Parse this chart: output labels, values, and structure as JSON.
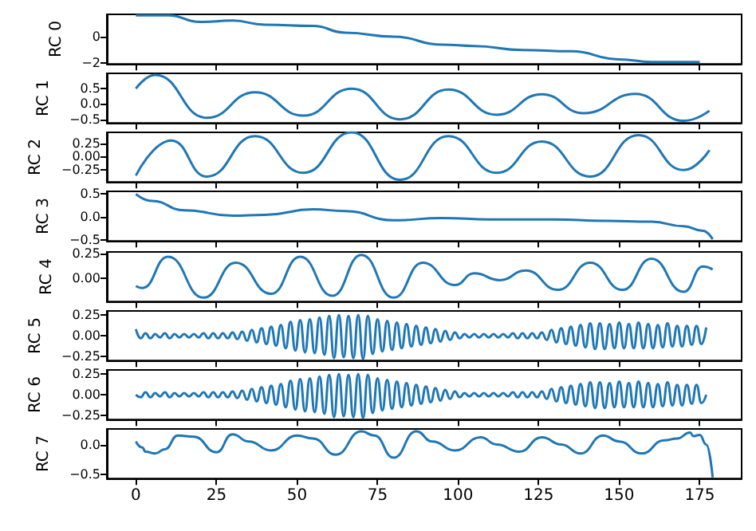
{
  "chart_data": [
    {
      "type": "line",
      "ylabel": "RC 0",
      "color": "#1f77b4",
      "xlim": [
        -9,
        188
      ],
      "xticks": [
        0,
        25,
        50,
        75,
        100,
        125,
        150,
        175
      ],
      "ylim": [
        -2.05,
        1.67
      ],
      "yticks": [
        {
          "value": -2,
          "label": "−2"
        },
        0
      ],
      "tick_labels": "y",
      "x": [
        0,
        10,
        20,
        30,
        40,
        55,
        65,
        80,
        95,
        105,
        120,
        135,
        150,
        160,
        175
      ],
      "values": [
        1.6,
        1.6,
        1.1,
        1.2,
        0.9,
        0.8,
        0.3,
        0.0,
        -0.6,
        -0.7,
        -1.0,
        -1.1,
        -1.7,
        -1.9,
        -1.9
      ]
    },
    {
      "type": "line",
      "ylabel": "RC 1",
      "color": "#1f77b4",
      "xlim": [
        -9,
        188
      ],
      "xticks": [
        0,
        25,
        50,
        75,
        100,
        125,
        150,
        175
      ],
      "ylim": [
        -0.62,
        1.0
      ],
      "yticks": [
        {
          "value": -0.5,
          "label": "−0.5"
        },
        {
          "value": 0,
          "label": "0.0"
        },
        0.5
      ],
      "tick_labels": "y",
      "x": [
        0,
        6,
        22,
        37,
        52,
        67,
        82,
        97,
        112,
        126,
        139,
        155,
        170,
        178
      ],
      "values": [
        0.5,
        0.95,
        -0.45,
        0.38,
        -0.38,
        0.5,
        -0.5,
        0.47,
        -0.35,
        0.32,
        -0.3,
        0.33,
        -0.55,
        -0.22
      ]
    },
    {
      "type": "line",
      "ylabel": "RC 2",
      "color": "#1f77b4",
      "xlim": [
        -9,
        188
      ],
      "xticks": [
        0,
        25,
        50,
        75,
        100,
        125,
        150,
        175
      ],
      "ylim": [
        -0.47,
        0.45
      ],
      "yticks": [
        {
          "value": -0.25,
          "label": "−0.25"
        },
        {
          "value": 0,
          "label": "0.00"
        },
        0.25
      ],
      "tick_labels": "y",
      "x": [
        0,
        11,
        22,
        37,
        52,
        67,
        82,
        97,
        112,
        126,
        141,
        156,
        170,
        178
      ],
      "values": [
        -0.35,
        0.3,
        -0.37,
        0.38,
        -0.3,
        0.45,
        -0.43,
        0.38,
        -0.3,
        0.28,
        -0.37,
        0.4,
        -0.25,
        0.12
      ]
    },
    {
      "type": "line",
      "ylabel": "RC 3",
      "color": "#1f77b4",
      "xlim": [
        -9,
        188
      ],
      "xticks": [
        0,
        25,
        50,
        75,
        100,
        125,
        150,
        175
      ],
      "ylim": [
        -0.52,
        0.56
      ],
      "yticks": [
        {
          "value": -0.5,
          "label": "−0.5"
        },
        {
          "value": 0,
          "label": "0.0"
        },
        0.5
      ],
      "tick_labels": "y",
      "x": [
        0,
        5,
        15,
        30,
        40,
        55,
        65,
        80,
        95,
        110,
        130,
        145,
        160,
        170,
        176,
        179
      ],
      "values": [
        0.5,
        0.35,
        0.15,
        0.03,
        0.05,
        0.17,
        0.13,
        -0.07,
        -0.02,
        -0.05,
        -0.05,
        -0.08,
        -0.1,
        -0.2,
        -0.3,
        -0.48
      ]
    },
    {
      "type": "line",
      "ylabel": "RC 4",
      "color": "#1f77b4",
      "xlim": [
        -9,
        188
      ],
      "xticks": [
        0,
        25,
        50,
        75,
        100,
        125,
        150,
        175
      ],
      "ylim": [
        -0.24,
        0.27
      ],
      "yticks": [
        {
          "value": 0,
          "label": "0.00"
        },
        0.25
      ],
      "tick_labels": "y",
      "x": [
        0,
        2,
        10,
        21,
        31,
        42,
        51,
        61,
        70,
        80,
        89,
        99,
        105,
        113,
        121,
        131,
        141,
        151,
        160,
        170,
        176,
        179
      ],
      "values": [
        -0.08,
        -0.1,
        0.22,
        -0.2,
        0.16,
        -0.16,
        0.22,
        -0.18,
        0.24,
        -0.2,
        0.16,
        -0.07,
        0.05,
        -0.02,
        0.08,
        -0.12,
        0.16,
        -0.12,
        0.2,
        -0.14,
        0.12,
        0.09
      ]
    },
    {
      "type": "line",
      "ylabel": "RC 5",
      "color": "#1f77b4",
      "xlim": [
        -9,
        188
      ],
      "xticks": [
        0,
        25,
        50,
        75,
        100,
        125,
        150,
        175
      ],
      "ylim": [
        -0.3,
        0.3
      ],
      "yticks": [
        {
          "value": -0.25,
          "label": "−0.25"
        },
        {
          "value": 0,
          "label": "0.00"
        },
        0.25
      ],
      "tick_labels": "y",
      "x": [
        0,
        1.5,
        3,
        4.5,
        6,
        7.5,
        9,
        10.5,
        12,
        13.5,
        15,
        16.5,
        18,
        19.5,
        21,
        22.5,
        24,
        25.5,
        27,
        28.5,
        30,
        31.5,
        33,
        34.5,
        36,
        37.5,
        39,
        40.5,
        42,
        43.5,
        45,
        46.5,
        48,
        49.5,
        51,
        52.5,
        54,
        55.5,
        57,
        58.5,
        60,
        61.5,
        63,
        64.5,
        66,
        67.5,
        69,
        70.5,
        72,
        73.5,
        75,
        76.5,
        78,
        79.5,
        81,
        82.5,
        84,
        85.5,
        87,
        88.5,
        90,
        91.5,
        93,
        94.5,
        96,
        97.5,
        99,
        100.5,
        102,
        103.5,
        105,
        106.5,
        108,
        109.5,
        111,
        112.5,
        114,
        115.5,
        117,
        118.5,
        120,
        121.5,
        123,
        124.5,
        126,
        127.5,
        129,
        130.5,
        132,
        133.5,
        135,
        136.5,
        138,
        139.5,
        141,
        142.5,
        144,
        145.5,
        147,
        148.5,
        150,
        151.5,
        153,
        154.5,
        156,
        157.5,
        159,
        160.5,
        162,
        163.5,
        165,
        166.5,
        168,
        169.5,
        171,
        172.5,
        174,
        175.5,
        177
      ],
      "values": [
        0.08,
        -0.03,
        0.03,
        -0.03,
        0.02,
        -0.02,
        0.03,
        -0.03,
        0.02,
        -0.02,
        0.02,
        -0.02,
        0.02,
        -0.02,
        0.03,
        -0.03,
        0.03,
        -0.03,
        0.03,
        -0.03,
        0.04,
        -0.04,
        0.05,
        -0.06,
        0.07,
        -0.08,
        0.09,
        -0.1,
        0.11,
        -0.12,
        0.13,
        -0.15,
        0.17,
        -0.18,
        0.19,
        -0.2,
        0.2,
        -0.21,
        0.22,
        -0.23,
        0.24,
        -0.27,
        0.25,
        -0.26,
        0.24,
        -0.27,
        0.25,
        -0.28,
        0.24,
        -0.22,
        0.2,
        -0.19,
        0.18,
        -0.17,
        0.16,
        -0.15,
        0.14,
        -0.13,
        0.12,
        -0.11,
        0.1,
        -0.09,
        0.08,
        -0.07,
        0.06,
        -0.05,
        0.04,
        -0.03,
        0.02,
        -0.02,
        0.02,
        -0.02,
        0.02,
        -0.02,
        0.02,
        -0.02,
        0.02,
        -0.02,
        0.03,
        -0.03,
        0.03,
        -0.03,
        0.03,
        -0.03,
        0.04,
        -0.05,
        0.07,
        -0.08,
        0.09,
        -0.1,
        0.11,
        -0.12,
        0.13,
        -0.14,
        0.15,
        -0.16,
        0.15,
        -0.16,
        0.14,
        -0.15,
        0.16,
        -0.15,
        0.14,
        -0.15,
        0.16,
        -0.15,
        0.14,
        -0.15,
        0.13,
        -0.14,
        0.15,
        -0.13,
        0.12,
        -0.13,
        0.12,
        -0.11,
        0.12,
        -0.1,
        0.1
      ]
    },
    {
      "type": "line",
      "ylabel": "RC 6",
      "color": "#1f77b4",
      "xlim": [
        -9,
        188
      ],
      "xticks": [
        0,
        25,
        50,
        75,
        100,
        125,
        150,
        175
      ],
      "ylim": [
        -0.3,
        0.3
      ],
      "yticks": [
        {
          "value": -0.25,
          "label": "−0.25"
        },
        {
          "value": 0,
          "label": "0.00"
        },
        0.25
      ],
      "tick_labels": "y",
      "x": [
        0,
        1.5,
        3,
        4.5,
        6,
        7.5,
        9,
        10.5,
        12,
        13.5,
        15,
        16.5,
        18,
        19.5,
        21,
        22.5,
        24,
        25.5,
        27,
        28.5,
        30,
        31.5,
        33,
        34.5,
        36,
        37.5,
        39,
        40.5,
        42,
        43.5,
        45,
        46.5,
        48,
        49.5,
        51,
        52.5,
        54,
        55.5,
        57,
        58.5,
        60,
        61.5,
        63,
        64.5,
        66,
        67.5,
        69,
        70.5,
        72,
        73.5,
        75,
        76.5,
        78,
        79.5,
        81,
        82.5,
        84,
        85.5,
        87,
        88.5,
        90,
        91.5,
        93,
        94.5,
        96,
        97.5,
        99,
        100.5,
        102,
        103.5,
        105,
        106.5,
        108,
        109.5,
        111,
        112.5,
        114,
        115.5,
        117,
        118.5,
        120,
        121.5,
        123,
        124.5,
        126,
        127.5,
        129,
        130.5,
        132,
        133.5,
        135,
        136.5,
        138,
        139.5,
        141,
        142.5,
        144,
        145.5,
        147,
        148.5,
        150,
        151.5,
        153,
        154.5,
        156,
        157.5,
        159,
        160.5,
        162,
        163.5,
        165,
        166.5,
        168,
        169.5,
        171,
        172.5,
        174,
        175.5,
        177
      ],
      "values": [
        0.0,
        -0.03,
        0.03,
        -0.03,
        0.02,
        -0.02,
        0.03,
        -0.03,
        0.02,
        -0.02,
        0.02,
        -0.02,
        0.02,
        -0.02,
        0.03,
        -0.03,
        0.03,
        -0.03,
        0.03,
        -0.03,
        0.04,
        -0.04,
        0.05,
        -0.06,
        0.07,
        -0.08,
        0.09,
        -0.1,
        0.11,
        -0.12,
        0.13,
        -0.15,
        0.17,
        -0.18,
        0.19,
        -0.2,
        0.2,
        -0.21,
        0.22,
        -0.23,
        0.24,
        -0.27,
        0.25,
        -0.26,
        0.24,
        -0.27,
        0.25,
        -0.28,
        0.24,
        -0.22,
        0.2,
        -0.19,
        0.18,
        -0.17,
        0.16,
        -0.15,
        0.14,
        -0.13,
        0.12,
        -0.11,
        0.1,
        -0.09,
        0.08,
        -0.07,
        0.06,
        -0.05,
        0.04,
        -0.03,
        0.02,
        -0.02,
        0.02,
        -0.02,
        0.02,
        -0.02,
        0.02,
        -0.02,
        0.02,
        -0.02,
        0.03,
        -0.03,
        0.03,
        -0.03,
        0.03,
        -0.03,
        0.04,
        -0.05,
        0.07,
        -0.08,
        0.09,
        -0.1,
        0.11,
        -0.12,
        0.13,
        -0.14,
        0.15,
        -0.16,
        0.15,
        -0.16,
        0.14,
        -0.15,
        0.16,
        -0.15,
        0.14,
        -0.15,
        0.16,
        -0.15,
        0.14,
        -0.15,
        0.13,
        -0.14,
        0.15,
        -0.13,
        0.12,
        -0.13,
        0.12,
        -0.11,
        0.12,
        -0.1,
        0.0
      ]
    },
    {
      "type": "line",
      "ylabel": "RC 7",
      "color": "#1f77b4",
      "xlim": [
        -9,
        188
      ],
      "xticks": [
        0,
        25,
        50,
        75,
        100,
        125,
        150,
        175
      ],
      "ylim": [
        -0.57,
        0.26
      ],
      "yticks": [
        {
          "value": -0.5,
          "label": "−0.5"
        },
        {
          "value": 0,
          "label": "0.0"
        }
      ],
      "x": [
        0,
        2,
        3,
        6,
        9,
        13,
        18,
        25,
        30,
        35,
        42,
        50,
        55,
        62,
        70,
        74,
        80,
        87,
        92,
        99,
        107,
        112,
        119,
        126,
        132,
        138,
        145,
        150,
        157,
        164,
        168,
        172,
        173,
        175,
        177,
        179
      ],
      "values": [
        0.05,
        -0.05,
        -0.12,
        -0.15,
        -0.08,
        0.15,
        0.13,
        -0.13,
        0.17,
        0.05,
        -0.1,
        0.15,
        0.1,
        -0.17,
        0.22,
        0.15,
        -0.22,
        0.22,
        0.05,
        -0.1,
        0.12,
        0.0,
        -0.12,
        0.12,
        0.0,
        -0.15,
        0.15,
        0.05,
        -0.15,
        0.07,
        0.1,
        0.2,
        0.14,
        0.16,
        0.0,
        -0.55
      ]
    }
  ]
}
